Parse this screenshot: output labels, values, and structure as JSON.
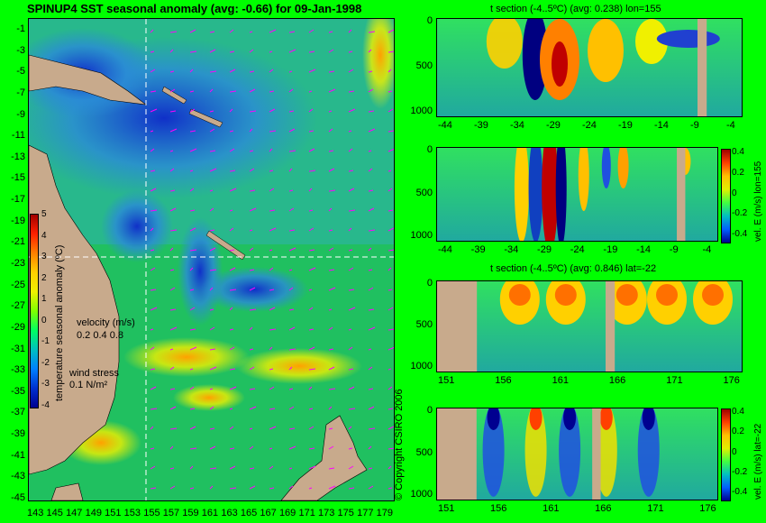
{
  "main_title": "SPINUP4 SST seasonal anomaly (avg: -0.66) for 09-Jan-1998",
  "copyright": "© Copyright CSIRO 2006",
  "colors": {
    "land": "#c8aa8c",
    "bg": "#00ff00",
    "grid_dash": "#ffffff",
    "arrows": "#ff00ff"
  },
  "map": {
    "y_ticks": [
      "-1",
      "-3",
      "-5",
      "-7",
      "-9",
      "-11",
      "-13",
      "-15",
      "-17",
      "-19",
      "-21",
      "-23",
      "-25",
      "-27",
      "-29",
      "-31",
      "-33",
      "-35",
      "-37",
      "-39",
      "-41",
      "-43",
      "-45"
    ],
    "x_ticks": [
      "143",
      "145",
      "147",
      "149",
      "151",
      "153",
      "155",
      "157",
      "159",
      "161",
      "163",
      "165",
      "167",
      "169",
      "171",
      "173",
      "175",
      "177",
      "179"
    ],
    "colorbar": {
      "ticks": [
        "5",
        "4",
        "3",
        "2",
        "1",
        "0",
        "-1",
        "-2",
        "-3",
        "-4"
      ],
      "label": "temperature seasonal anomaly (ºC)"
    },
    "velocity_legend": {
      "title": "velocity (m/s)",
      "scale": "0.2 0.4 0.8"
    },
    "wind_legend": {
      "title": "wind stress",
      "scale": "0.1 N/m²"
    }
  },
  "chart_data": [
    {
      "type": "heatmap",
      "title": "t section (-4..5ºC) (avg: 0.238) lon=155",
      "x_ticks": [
        "-44",
        "-39",
        "-34",
        "-29",
        "-24",
        "-19",
        "-14",
        "-9",
        "-4"
      ],
      "y_ticks": [
        "0",
        "500",
        "1000"
      ]
    },
    {
      "type": "heatmap",
      "title": "",
      "x_ticks": [
        "-44",
        "-39",
        "-34",
        "-29",
        "-24",
        "-19",
        "-14",
        "-9",
        "-4"
      ],
      "y_ticks": [
        "0",
        "500",
        "1000"
      ],
      "colorbar_ticks": [
        "0.4",
        "0.2",
        "0",
        "-0.2",
        "-0.4"
      ],
      "colorbar_label": "vel. E (m/s) lon=155"
    },
    {
      "type": "heatmap",
      "title": "t section (-4..5ºC) (avg: 0.846) lat=-22",
      "x_ticks": [
        "151",
        "156",
        "161",
        "166",
        "171",
        "176"
      ],
      "y_ticks": [
        "0",
        "500",
        "1000"
      ]
    },
    {
      "type": "heatmap",
      "title": "",
      "x_ticks": [
        "151",
        "156",
        "161",
        "166",
        "171",
        "176"
      ],
      "y_ticks": [
        "0",
        "500",
        "1000"
      ],
      "colorbar_ticks": [
        "0.4",
        "0.2",
        "0",
        "-0.2",
        "-0.4"
      ],
      "colorbar_label": "vel. E (m/s) lat=-22"
    }
  ]
}
